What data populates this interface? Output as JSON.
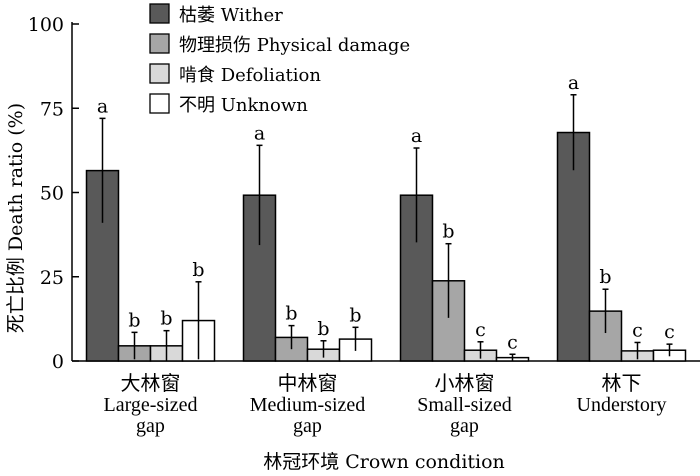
{
  "chart_data": {
    "type": "bar",
    "xlabel": "林冠环境 Crown condition",
    "ylabel": "死亡比例 Death ratio (%)",
    "ylim": [
      0,
      100
    ],
    "yticks": [
      0,
      25,
      50,
      75,
      100
    ],
    "legend_position": "top-left",
    "categories": [
      {
        "lines": [
          "大林窗",
          "Large-sized",
          "gap"
        ]
      },
      {
        "lines": [
          "中林窗",
          "Medium-sized",
          "gap"
        ]
      },
      {
        "lines": [
          "小林窗",
          "Small-sized",
          "gap"
        ]
      },
      {
        "lines": [
          "林下",
          "Understory"
        ]
      }
    ],
    "series": [
      {
        "name": "枯萎 Wither",
        "color": "#595959",
        "values": [
          56.5,
          49.2,
          49.2,
          67.8
        ],
        "errors": [
          15.5,
          14.8,
          14.0,
          11.2
        ],
        "labels": [
          "a",
          "a",
          "a",
          "a"
        ]
      },
      {
        "name": "物理损伤 Physical damage",
        "color": "#a6a6a6",
        "values": [
          4.5,
          7.0,
          23.8,
          14.8
        ],
        "errors": [
          4.0,
          3.5,
          11.0,
          6.5
        ],
        "labels": [
          "b",
          "b",
          "b",
          "b"
        ]
      },
      {
        "name": "啃食 Defoliation",
        "color": "#d9d9d9",
        "values": [
          4.5,
          3.5,
          3.2,
          3.0
        ],
        "errors": [
          4.5,
          2.5,
          2.5,
          2.5
        ],
        "labels": [
          "b",
          "b",
          "c",
          "c"
        ]
      },
      {
        "name": "不明 Unknown",
        "color": "#ffffff",
        "values": [
          12.0,
          6.5,
          1.0,
          3.2
        ],
        "errors": [
          11.5,
          3.5,
          1.0,
          1.8
        ],
        "labels": [
          "b",
          "b",
          "c",
          "c"
        ]
      }
    ]
  }
}
